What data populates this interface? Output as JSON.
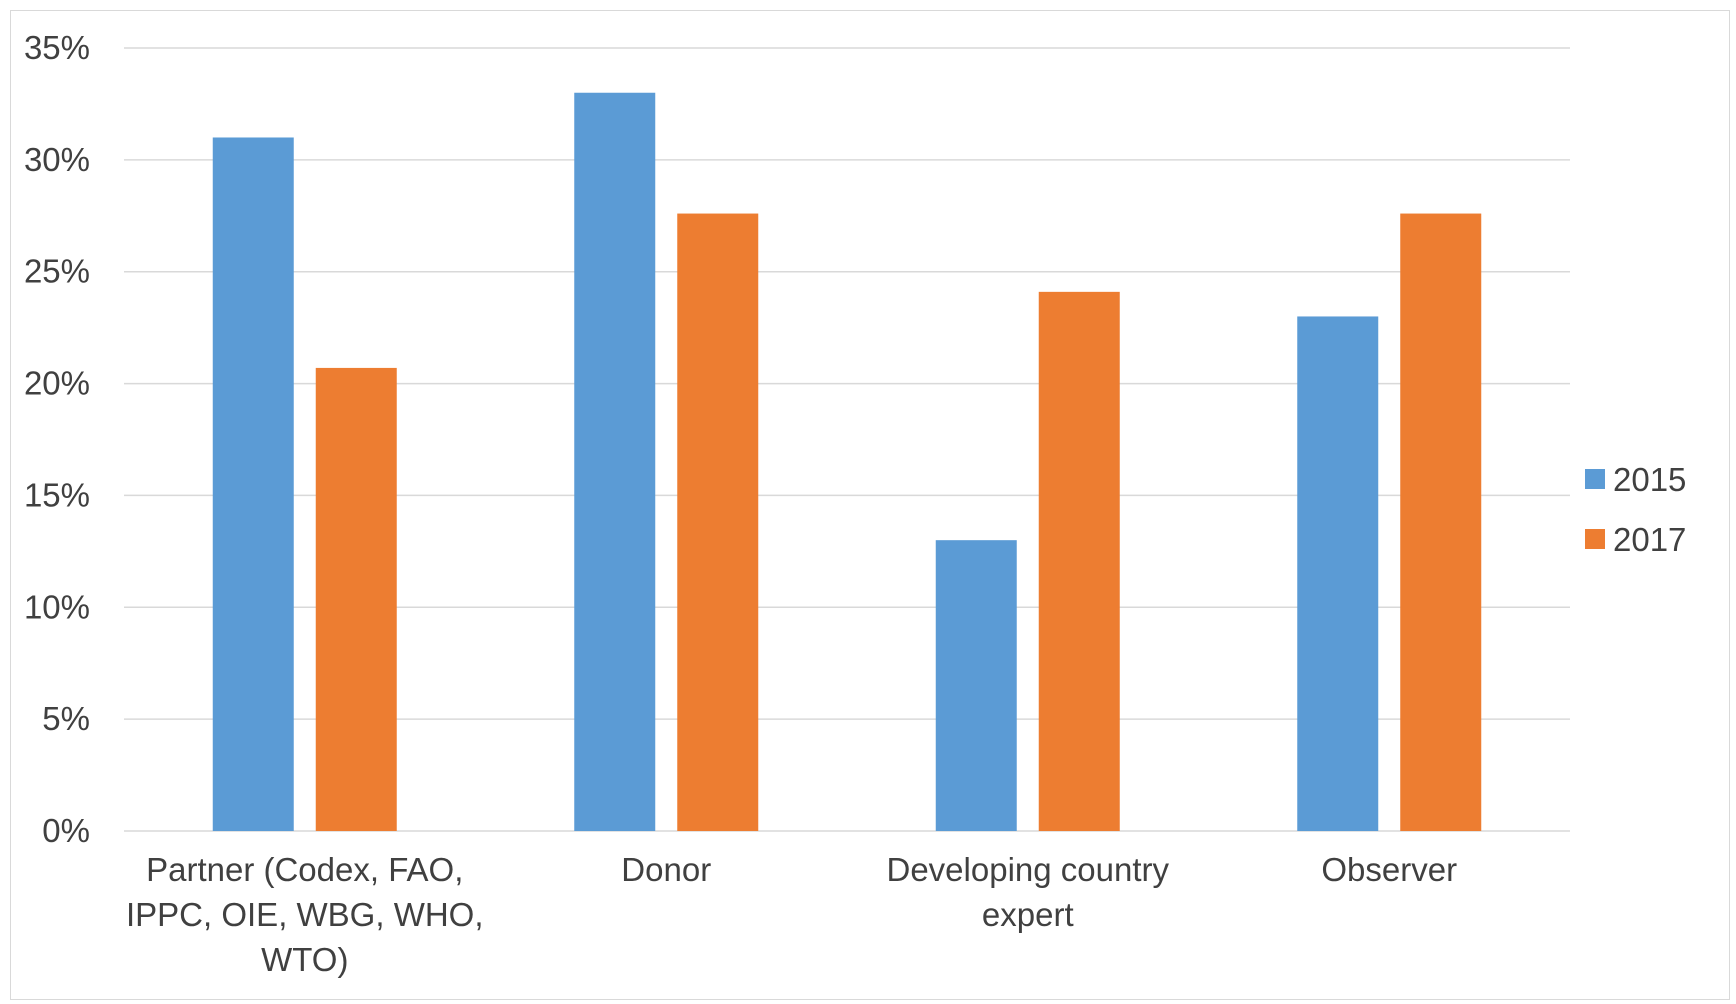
{
  "chart_data": {
    "type": "bar",
    "categories": [
      [
        "Partner (Codex, FAO,",
        "IPPC, OIE, WBG, WHO,",
        "WTO)"
      ],
      [
        "Donor"
      ],
      [
        "Developing country",
        "expert"
      ],
      [
        "Observer"
      ]
    ],
    "series": [
      {
        "name": "2015",
        "color": "#5b9bd5",
        "values": [
          31,
          33,
          13,
          23
        ]
      },
      {
        "name": "2017",
        "color": "#ed7d31",
        "values": [
          20.7,
          27.6,
          24.1,
          27.6
        ]
      }
    ],
    "yticks": [
      "0%",
      "5%",
      "10%",
      "15%",
      "20%",
      "25%",
      "30%",
      "35%"
    ],
    "ylim": [
      0,
      35
    ],
    "ystep": 5,
    "grid": true,
    "legend_position": "right",
    "gridline_color": "#d9d9d9"
  }
}
